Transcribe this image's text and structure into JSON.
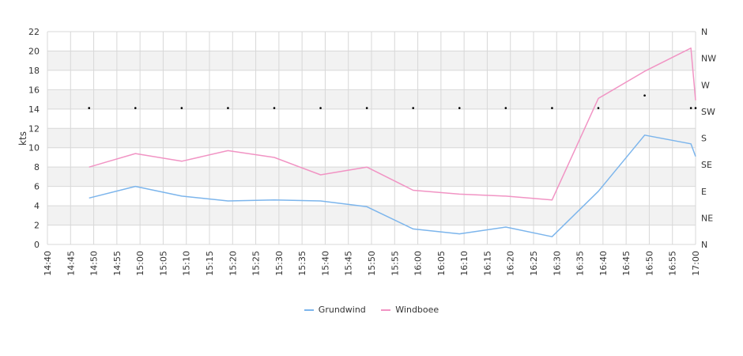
{
  "chart_data": {
    "type": "line",
    "ylabel": "kts",
    "ylim": [
      0,
      22
    ],
    "yticks": [
      "0",
      "2",
      "4",
      "6",
      "8",
      "10",
      "12",
      "14",
      "16",
      "18",
      "20",
      "22"
    ],
    "right_axis": {
      "labels": [
        "N",
        "NE",
        "E",
        "SE",
        "S",
        "SW",
        "W",
        "NW",
        "N"
      ]
    },
    "x_ticks": [
      "14:40",
      "14:45",
      "14:50",
      "14:55",
      "15:00",
      "15:05",
      "15:10",
      "15:15",
      "15:20",
      "15:25",
      "15:30",
      "15:35",
      "15:40",
      "15:45",
      "15:50",
      "15:55",
      "16:00",
      "16:05",
      "16:10",
      "16:15",
      "16:20",
      "16:25",
      "16:30",
      "16:35",
      "16:40",
      "16:45",
      "16:50",
      "16:55",
      "17:00"
    ],
    "xlim": [
      "14:40",
      "17:00"
    ],
    "x": [
      "14:49",
      "14:59",
      "15:09",
      "15:19",
      "15:29",
      "15:39",
      "15:49",
      "15:59",
      "16:09",
      "16:19",
      "16:29",
      "16:39",
      "16:49",
      "16:59",
      "17:00"
    ],
    "series": [
      {
        "name": "Grundwind",
        "color": "#7cb5ec",
        "values": [
          4.8,
          6.0,
          5.0,
          4.5,
          4.6,
          4.5,
          3.9,
          1.6,
          1.1,
          1.8,
          0.8,
          5.5,
          11.3,
          10.4,
          9.1
        ]
      },
      {
        "name": "Windboee",
        "color": "#f194c4",
        "values": [
          8.0,
          9.4,
          8.6,
          9.7,
          9.0,
          7.2,
          8.0,
          5.6,
          5.2,
          5.0,
          4.6,
          15.1,
          17.9,
          20.3,
          14.9
        ]
      }
    ],
    "direction_markers": {
      "x": [
        "14:49",
        "14:59",
        "15:09",
        "15:19",
        "15:29",
        "15:39",
        "15:49",
        "15:59",
        "16:09",
        "16:19",
        "16:29",
        "16:39",
        "16:49",
        "16:59",
        "17:00"
      ],
      "values": [
        14.1,
        14.1,
        14.1,
        14.1,
        14.1,
        14.1,
        14.1,
        14.1,
        14.1,
        14.1,
        14.1,
        14.1,
        15.4,
        14.1,
        14.1
      ]
    },
    "grid": true,
    "alternate_bands": true,
    "legend_position": "bottom-center"
  }
}
